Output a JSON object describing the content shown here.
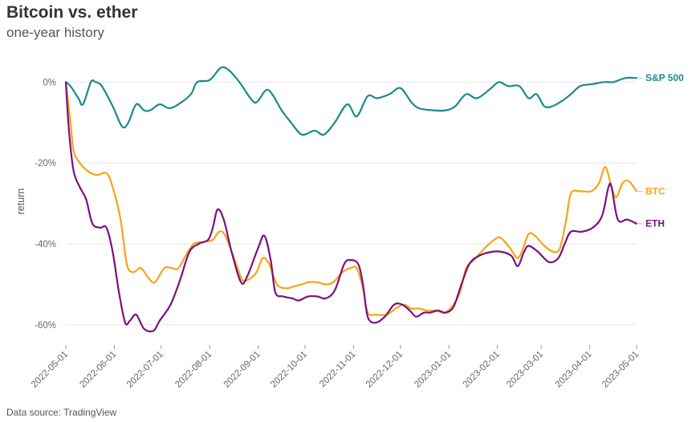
{
  "title": "Bitcoin vs. ether",
  "subtitle": "one-year history",
  "source": "Data source: TradingView",
  "chart_data": {
    "type": "line",
    "ylabel": "return",
    "ylim": [
      -65,
      6
    ],
    "yticks": [
      0,
      -20,
      -40,
      -60
    ],
    "ytick_labels": [
      "0%",
      "-20%",
      "-40%",
      "-60%"
    ],
    "xlim": [
      "2022-05-01",
      "2023-05-01"
    ],
    "xticks": [
      "2022-05-01",
      "2022-06-01",
      "2022-07-01",
      "2022-08-01",
      "2022-09-01",
      "2022-10-01",
      "2022-11-01",
      "2022-12-01",
      "2023-01-01",
      "2023-02-01",
      "2023-03-01",
      "2023-04-01",
      "2023-05-01"
    ],
    "grid": true,
    "series": [
      {
        "name": "S&P 500",
        "color": "#1b8a8c",
        "points": [
          [
            "2022-05-01",
            0
          ],
          [
            "2022-05-04",
            -1
          ],
          [
            "2022-05-09",
            -4
          ],
          [
            "2022-05-12",
            -5.5
          ],
          [
            "2022-05-17",
            0
          ],
          [
            "2022-05-20",
            0
          ],
          [
            "2022-05-24",
            -1
          ],
          [
            "2022-05-31",
            -6
          ],
          [
            "2022-06-06",
            -11
          ],
          [
            "2022-06-10",
            -10
          ],
          [
            "2022-06-15",
            -5.5
          ],
          [
            "2022-06-20",
            -7
          ],
          [
            "2022-06-24",
            -7
          ],
          [
            "2022-06-30",
            -5.5
          ],
          [
            "2022-07-06",
            -6.5
          ],
          [
            "2022-07-12",
            -5.5
          ],
          [
            "2022-07-20",
            -3
          ],
          [
            "2022-07-24",
            0
          ],
          [
            "2022-08-01",
            0.5
          ],
          [
            "2022-08-08",
            3.5
          ],
          [
            "2022-08-13",
            3
          ],
          [
            "2022-08-20",
            0
          ],
          [
            "2022-08-27",
            -4
          ],
          [
            "2022-08-31",
            -5
          ],
          [
            "2022-09-06",
            -2
          ],
          [
            "2022-09-10",
            -3
          ],
          [
            "2022-09-16",
            -7
          ],
          [
            "2022-09-22",
            -10
          ],
          [
            "2022-09-29",
            -13
          ],
          [
            "2022-10-07",
            -12
          ],
          [
            "2022-10-13",
            -13
          ],
          [
            "2022-10-20",
            -10
          ],
          [
            "2022-10-28",
            -5.5
          ],
          [
            "2022-11-03",
            -8.5
          ],
          [
            "2022-11-10",
            -3.5
          ],
          [
            "2022-11-16",
            -4
          ],
          [
            "2022-11-24",
            -3
          ],
          [
            "2022-12-01",
            -1.5
          ],
          [
            "2022-12-08",
            -5
          ],
          [
            "2022-12-13",
            -6.5
          ],
          [
            "2022-12-22",
            -7
          ],
          [
            "2022-12-30",
            -7
          ],
          [
            "2023-01-05",
            -6
          ],
          [
            "2023-01-12",
            -3
          ],
          [
            "2023-01-19",
            -4
          ],
          [
            "2023-01-28",
            -1.5
          ],
          [
            "2023-02-02",
            0
          ],
          [
            "2023-02-08",
            -1
          ],
          [
            "2023-02-15",
            -1
          ],
          [
            "2023-02-21",
            -4
          ],
          [
            "2023-02-26",
            -3
          ],
          [
            "2023-03-03",
            -6
          ],
          [
            "2023-03-08",
            -6
          ],
          [
            "2023-03-15",
            -4.5
          ],
          [
            "2023-03-20",
            -3
          ],
          [
            "2023-03-26",
            -1
          ],
          [
            "2023-04-03",
            -0.5
          ],
          [
            "2023-04-10",
            0
          ],
          [
            "2023-04-16",
            0
          ],
          [
            "2023-04-24",
            1
          ],
          [
            "2023-05-01",
            1
          ]
        ]
      },
      {
        "name": "BTC",
        "color": "#f5a515",
        "points": [
          [
            "2022-05-01",
            0
          ],
          [
            "2022-05-04",
            -10
          ],
          [
            "2022-05-06",
            -17
          ],
          [
            "2022-05-10",
            -20
          ],
          [
            "2022-05-15",
            -22
          ],
          [
            "2022-05-21",
            -23
          ],
          [
            "2022-05-27",
            -22.5
          ],
          [
            "2022-05-31",
            -26
          ],
          [
            "2022-06-05",
            -34
          ],
          [
            "2022-06-09",
            -45
          ],
          [
            "2022-06-13",
            -47
          ],
          [
            "2022-06-18",
            -46
          ],
          [
            "2022-06-23",
            -48.5
          ],
          [
            "2022-06-27",
            -49.5
          ],
          [
            "2022-07-03",
            -46
          ],
          [
            "2022-07-08",
            -46
          ],
          [
            "2022-07-12",
            -46
          ],
          [
            "2022-07-18",
            -42
          ],
          [
            "2022-07-22",
            -40
          ],
          [
            "2022-07-28",
            -39.5
          ],
          [
            "2022-08-03",
            -39
          ],
          [
            "2022-08-07",
            -37
          ],
          [
            "2022-08-11",
            -38
          ],
          [
            "2022-08-18",
            -45
          ],
          [
            "2022-08-22",
            -49
          ],
          [
            "2022-08-27",
            -48.5
          ],
          [
            "2022-08-31",
            -47
          ],
          [
            "2022-09-04",
            -43.5
          ],
          [
            "2022-09-08",
            -45
          ],
          [
            "2022-09-13",
            -50
          ],
          [
            "2022-09-19",
            -51
          ],
          [
            "2022-09-24",
            -50.5
          ],
          [
            "2022-09-29",
            -50
          ],
          [
            "2022-10-03",
            -49.5
          ],
          [
            "2022-10-09",
            -49.5
          ],
          [
            "2022-10-14",
            -50
          ],
          [
            "2022-10-19",
            -49.5
          ],
          [
            "2022-10-25",
            -47
          ],
          [
            "2022-10-30",
            -46
          ],
          [
            "2022-11-03",
            -46
          ],
          [
            "2022-11-07",
            -51
          ],
          [
            "2022-11-10",
            -57
          ],
          [
            "2022-11-15",
            -57.5
          ],
          [
            "2022-11-22",
            -57.5
          ],
          [
            "2022-11-28",
            -56
          ],
          [
            "2022-12-03",
            -55
          ],
          [
            "2022-12-08",
            -56
          ],
          [
            "2022-12-13",
            -56
          ],
          [
            "2022-12-18",
            -56.5
          ],
          [
            "2022-12-24",
            -56.5
          ],
          [
            "2022-12-29",
            -57
          ],
          [
            "2023-01-03",
            -55.5
          ],
          [
            "2023-01-08",
            -52
          ],
          [
            "2023-01-12",
            -46
          ],
          [
            "2023-01-17",
            -44
          ],
          [
            "2023-01-24",
            -41
          ],
          [
            "2023-01-30",
            -39
          ],
          [
            "2023-02-03",
            -38.5
          ],
          [
            "2023-02-09",
            -41
          ],
          [
            "2023-02-14",
            -43.5
          ],
          [
            "2023-02-18",
            -40.5
          ],
          [
            "2023-02-21",
            -37.5
          ],
          [
            "2023-02-25",
            -38
          ],
          [
            "2023-03-03",
            -40.5
          ],
          [
            "2023-03-09",
            -42
          ],
          [
            "2023-03-13",
            -41
          ],
          [
            "2023-03-17",
            -34
          ],
          [
            "2023-03-20",
            -27.5
          ],
          [
            "2023-03-26",
            -27
          ],
          [
            "2023-04-02",
            -27
          ],
          [
            "2023-04-07",
            -25
          ],
          [
            "2023-04-11",
            -21
          ],
          [
            "2023-04-15",
            -26
          ],
          [
            "2023-04-18",
            -28.5
          ],
          [
            "2023-04-22",
            -25
          ],
          [
            "2023-04-26",
            -24.5
          ],
          [
            "2023-05-01",
            -27
          ]
        ]
      },
      {
        "name": "ETH",
        "color": "#7b1080",
        "points": [
          [
            "2022-05-01",
            0
          ],
          [
            "2022-05-03",
            -12
          ],
          [
            "2022-05-06",
            -22
          ],
          [
            "2022-05-10",
            -26
          ],
          [
            "2022-05-14",
            -29
          ],
          [
            "2022-05-18",
            -35
          ],
          [
            "2022-05-23",
            -36
          ],
          [
            "2022-05-27",
            -36
          ],
          [
            "2022-05-31",
            -42
          ],
          [
            "2022-06-04",
            -52
          ],
          [
            "2022-06-08",
            -59.5
          ],
          [
            "2022-06-11",
            -59
          ],
          [
            "2022-06-15",
            -57.5
          ],
          [
            "2022-06-20",
            -61
          ],
          [
            "2022-06-26",
            -61.5
          ],
          [
            "2022-06-30",
            -59
          ],
          [
            "2022-07-07",
            -55
          ],
          [
            "2022-07-13",
            -49
          ],
          [
            "2022-07-19",
            -42
          ],
          [
            "2022-07-25",
            -40
          ],
          [
            "2022-07-31",
            -39
          ],
          [
            "2022-08-03",
            -36
          ],
          [
            "2022-08-06",
            -31.5
          ],
          [
            "2022-08-10",
            -34
          ],
          [
            "2022-08-15",
            -42
          ],
          [
            "2022-08-21",
            -49.5
          ],
          [
            "2022-08-25",
            -48
          ],
          [
            "2022-09-01",
            -41
          ],
          [
            "2022-09-05",
            -38
          ],
          [
            "2022-09-09",
            -44
          ],
          [
            "2022-09-12",
            -52
          ],
          [
            "2022-09-17",
            -53
          ],
          [
            "2022-09-23",
            -53.5
          ],
          [
            "2022-09-27",
            -54
          ],
          [
            "2022-10-03",
            -53
          ],
          [
            "2022-10-09",
            -53
          ],
          [
            "2022-10-14",
            -53.5
          ],
          [
            "2022-10-20",
            -51.5
          ],
          [
            "2022-10-26",
            -45
          ],
          [
            "2022-10-30",
            -44
          ],
          [
            "2022-11-04",
            -45
          ],
          [
            "2022-11-07",
            -50
          ],
          [
            "2022-11-10",
            -58
          ],
          [
            "2022-11-15",
            -59.5
          ],
          [
            "2022-11-21",
            -58
          ],
          [
            "2022-11-27",
            -55
          ],
          [
            "2022-12-02",
            -55
          ],
          [
            "2022-12-07",
            -56.5
          ],
          [
            "2022-12-11",
            -58
          ],
          [
            "2022-12-16",
            -57
          ],
          [
            "2022-12-20",
            -57
          ],
          [
            "2022-12-25",
            -56.5
          ],
          [
            "2022-12-30",
            -57
          ],
          [
            "2023-01-04",
            -55.5
          ],
          [
            "2023-01-09",
            -50
          ],
          [
            "2023-01-14",
            -45
          ],
          [
            "2023-01-20",
            -43
          ],
          [
            "2023-01-28",
            -42
          ],
          [
            "2023-02-04",
            -42
          ],
          [
            "2023-02-10",
            -43
          ],
          [
            "2023-02-14",
            -45.5
          ],
          [
            "2023-02-18",
            -42
          ],
          [
            "2023-02-21",
            -40.5
          ],
          [
            "2023-02-27",
            -42
          ],
          [
            "2023-03-06",
            -44.5
          ],
          [
            "2023-03-12",
            -43.5
          ],
          [
            "2023-03-16",
            -40
          ],
          [
            "2023-03-20",
            -37
          ],
          [
            "2023-03-27",
            -37
          ],
          [
            "2023-04-03",
            -36
          ],
          [
            "2023-04-09",
            -33
          ],
          [
            "2023-04-13",
            -26
          ],
          [
            "2023-04-15",
            -26
          ],
          [
            "2023-04-19",
            -34
          ],
          [
            "2023-04-25",
            -34
          ],
          [
            "2023-05-01",
            -35
          ]
        ]
      }
    ]
  }
}
